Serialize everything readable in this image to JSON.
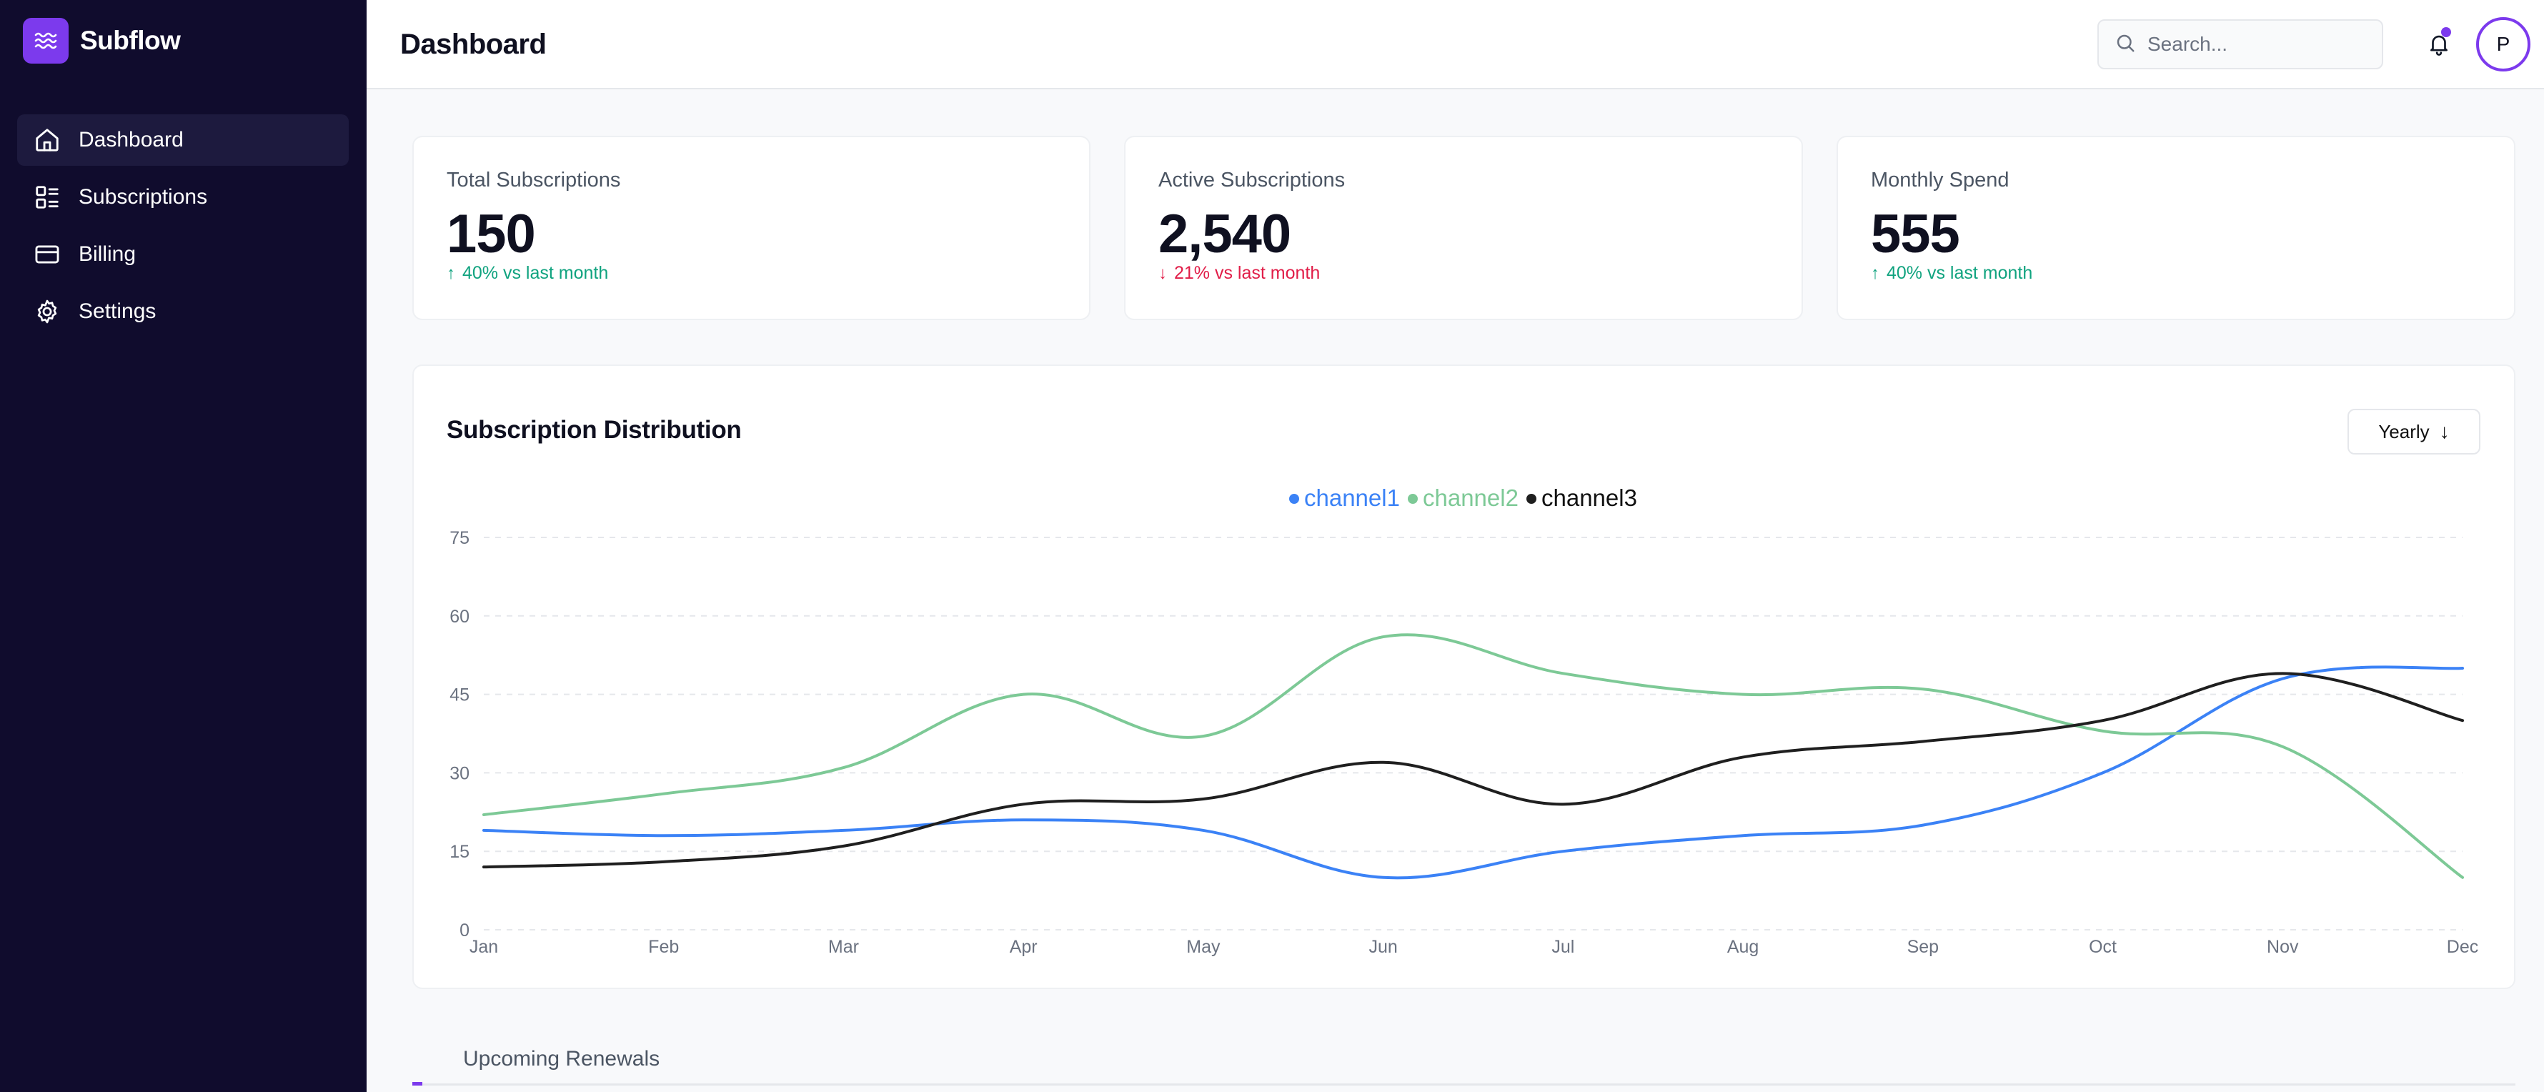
{
  "brand": {
    "name": "Subflow",
    "accent": "#7c3aed",
    "logo_icon": "waves-icon"
  },
  "sidebar": {
    "items": [
      {
        "label": "Dashboard",
        "icon": "home-icon",
        "active": true
      },
      {
        "label": "Subscriptions",
        "icon": "grid-list-icon",
        "active": false
      },
      {
        "label": "Billing",
        "icon": "credit-card-icon",
        "active": false
      },
      {
        "label": "Settings",
        "icon": "gear-icon",
        "active": false
      }
    ]
  },
  "header": {
    "title": "Dashboard",
    "search_placeholder": "Search...",
    "notification_icon": "bell-icon",
    "avatar_initial": "P"
  },
  "stats": [
    {
      "label": "Total Subscriptions",
      "value": "150",
      "trend": "40% vs last month",
      "direction": "up"
    },
    {
      "label": "Active Subscriptions",
      "value": "2,540",
      "trend": "21% vs last month",
      "direction": "down"
    },
    {
      "label": "Monthly Spend",
      "value": "555",
      "trend": "40% vs last month",
      "direction": "up"
    }
  ],
  "chart_section": {
    "title": "Subscription Distribution",
    "period_label": "Yearly"
  },
  "chart_data": {
    "type": "line",
    "title": "",
    "xlabel": "",
    "ylabel": "",
    "x": [
      "Jan",
      "Feb",
      "Mar",
      "Apr",
      "May",
      "Jun",
      "Jul",
      "Aug",
      "Sep",
      "Oct",
      "Nov",
      "Dec"
    ],
    "ylim": [
      0,
      75
    ],
    "yticks": [
      0,
      15,
      30,
      45,
      60,
      75
    ],
    "grid": true,
    "legend": "top-center",
    "series": [
      {
        "name": "channel1",
        "color": "#3b82f6",
        "values": [
          19,
          18,
          19,
          21,
          19,
          10,
          15,
          18,
          20,
          30,
          48,
          50
        ]
      },
      {
        "name": "channel2",
        "color": "#7dc996",
        "values": [
          22,
          26,
          31,
          45,
          37,
          56,
          49,
          45,
          46,
          38,
          35,
          10
        ]
      },
      {
        "name": "channel3",
        "color": "#1f1f1f",
        "values": [
          12,
          13,
          16,
          24,
          25,
          32,
          24,
          33,
          36,
          40,
          49,
          40
        ]
      }
    ]
  },
  "renewals": {
    "tab_label": "Upcoming Renewals"
  }
}
